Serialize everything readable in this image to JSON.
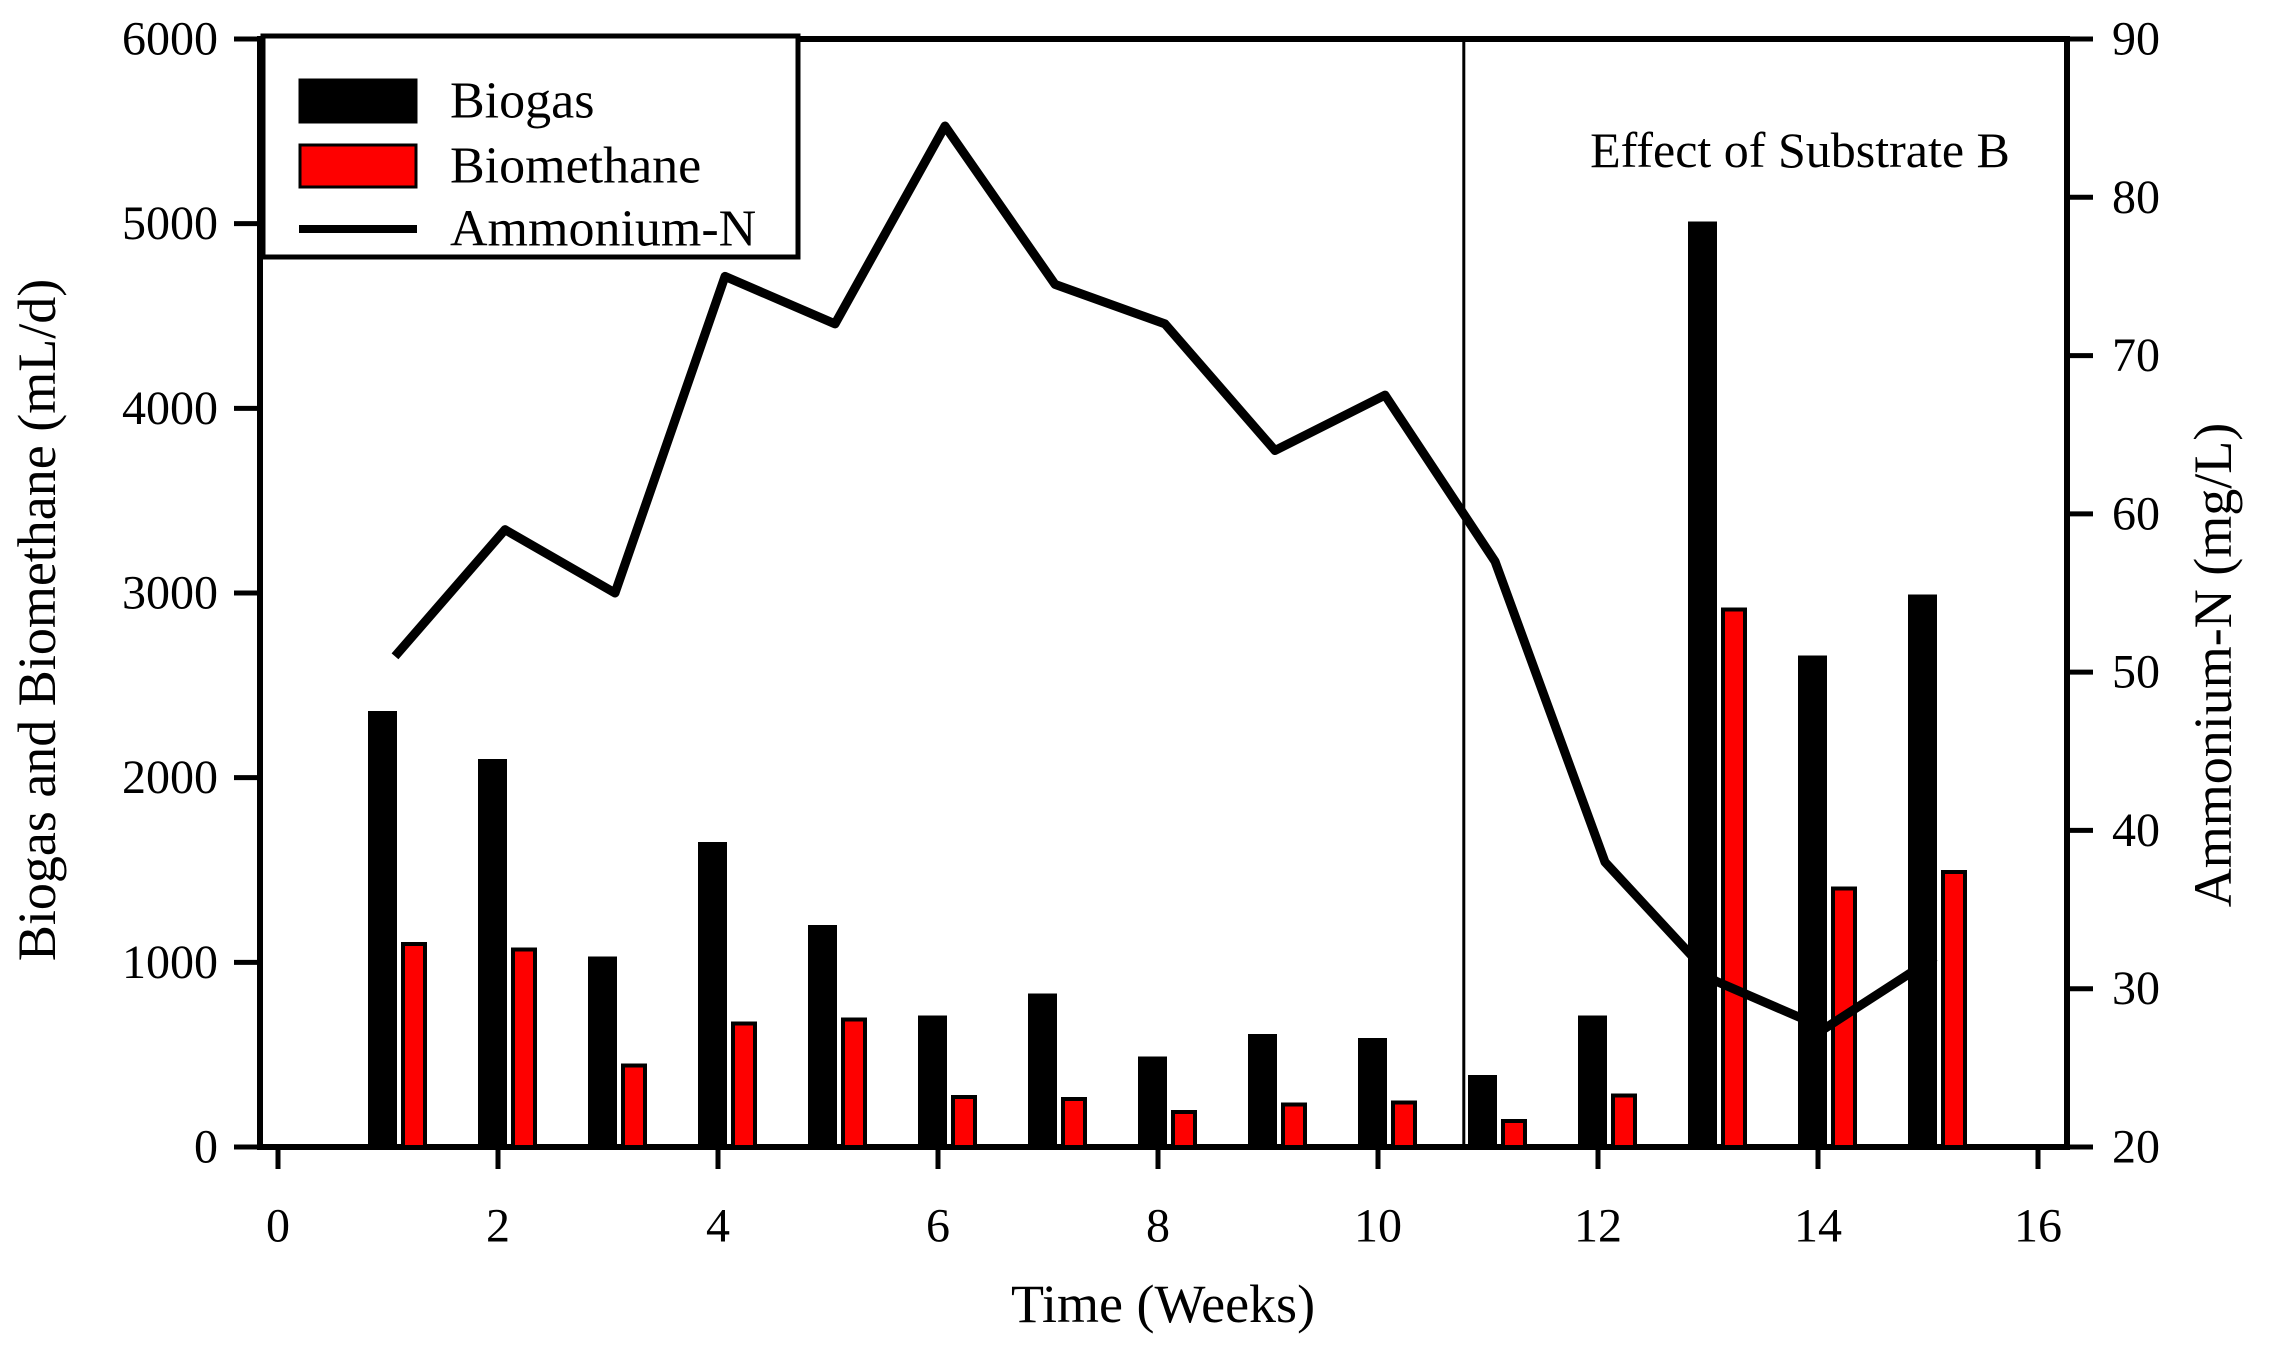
{
  "chart_data": {
    "type": "bar",
    "x": [
      1,
      2,
      3,
      4,
      5,
      6,
      7,
      8,
      9,
      10,
      11,
      12,
      13,
      14,
      15
    ],
    "series": [
      {
        "name": "Biogas",
        "type": "bar",
        "axis": "left",
        "color": "#000000",
        "values": [
          2350,
          2090,
          1020,
          1640,
          1190,
          700,
          820,
          480,
          600,
          580,
          380,
          700,
          5000,
          2650,
          2980
        ]
      },
      {
        "name": "Biomethane",
        "type": "bar",
        "axis": "left",
        "color": "#fe0000",
        "values": [
          1100,
          1070,
          440,
          670,
          690,
          270,
          260,
          190,
          230,
          240,
          140,
          280,
          2910,
          1400,
          1490
        ]
      },
      {
        "name": "Ammonium-N",
        "type": "line",
        "axis": "right",
        "color": "#000000",
        "values": [
          51,
          59,
          55,
          75,
          72,
          84.5,
          74.5,
          72,
          64,
          67.5,
          57,
          38,
          30.5,
          27.5,
          32
        ]
      }
    ],
    "axes": {
      "x": {
        "label": "Time (Weeks)",
        "ticks": [
          0,
          2,
          4,
          6,
          8,
          10,
          12,
          14,
          16
        ],
        "range": [
          -0.17,
          16.26
        ]
      },
      "y_left": {
        "label": "Biogas and Biomethane (mL/d)",
        "ticks": [
          0,
          1000,
          2000,
          3000,
          4000,
          5000,
          6000
        ],
        "range": [
          0,
          6000
        ]
      },
      "y_right": {
        "label": "Ammonium-N (mg/L)",
        "ticks": [
          20,
          30,
          40,
          50,
          60,
          70,
          80,
          90
        ],
        "range": [
          20,
          90
        ]
      }
    },
    "grid": false,
    "legend_position": "upper-left",
    "divider_week": 10.78,
    "annotation": {
      "text": "Effect of Substrate B"
    }
  }
}
